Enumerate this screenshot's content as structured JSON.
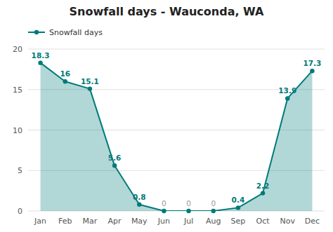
{
  "chart_data": {
    "type": "area",
    "title": "Snowfall days - Wauconda, WA",
    "categories": [
      "Jan",
      "Feb",
      "Mar",
      "Apr",
      "May",
      "Jun",
      "Jul",
      "Aug",
      "Sep",
      "Oct",
      "Nov",
      "Dec"
    ],
    "series": [
      {
        "name": "Snowfall days",
        "color": "#007a7a",
        "values": [
          18.3,
          16.0,
          15.1,
          5.6,
          0.8,
          0,
          0,
          0,
          0.4,
          2.2,
          13.9,
          17.3
        ]
      }
    ],
    "ylim": [
      0,
      20
    ],
    "yticks": [
      0,
      5,
      10,
      15,
      20
    ],
    "grid": true,
    "legend": "top-left",
    "data_labels": true,
    "marker": "circle"
  }
}
